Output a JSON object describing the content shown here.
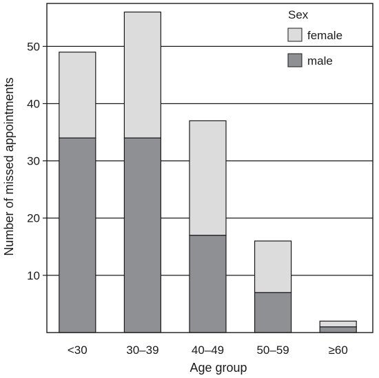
{
  "chart_data": {
    "type": "bar",
    "stacked": true,
    "categories": [
      "<30",
      "30–39",
      "40–49",
      "50–59",
      "≥60"
    ],
    "series": [
      {
        "name": "male",
        "values": [
          34,
          34,
          17,
          7,
          1
        ],
        "color": "#8f9093"
      },
      {
        "name": "female",
        "values": [
          15,
          22,
          20,
          9,
          1
        ],
        "color": "#dcdcdd"
      }
    ],
    "xlabel": "Age group",
    "ylabel": "Number of missed appointments",
    "ylim": [
      0,
      57.5
    ],
    "yticks": [
      10,
      20,
      30,
      40,
      50
    ],
    "grid": "horizontal",
    "legend": {
      "title": "Sex",
      "placement": "top-right",
      "entries": [
        "female",
        "male"
      ]
    }
  }
}
